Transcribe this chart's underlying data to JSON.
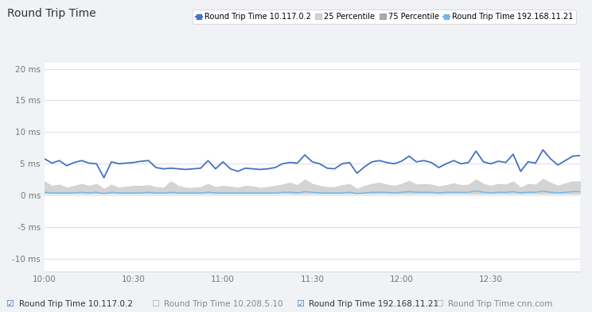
{
  "title": "Round Trip Time",
  "x_ticks": [
    "10:00",
    "10:30",
    "11:00",
    "11:30",
    "12:00",
    "12:30"
  ],
  "y_ticks": [
    -10,
    -5,
    0,
    5,
    10,
    15,
    20
  ],
  "y_labels": [
    "-10 ms",
    "-5 ms",
    "0 ms",
    "5 ms",
    "10 ms",
    "15 ms",
    "20 ms"
  ],
  "ylim": [
    -12,
    21
  ],
  "xlim": [
    0,
    72
  ],
  "bg_color": "#f0f2f5",
  "plot_bg": "#ffffff",
  "rtt_10117": [
    5.8,
    5.1,
    5.5,
    4.7,
    5.2,
    5.5,
    5.1,
    5.0,
    2.8,
    5.3,
    5.0,
    5.1,
    5.2,
    5.4,
    5.5,
    4.4,
    4.2,
    4.3,
    4.2,
    4.1,
    4.2,
    4.3,
    5.5,
    4.2,
    5.3,
    4.2,
    3.8,
    4.3,
    4.2,
    4.1,
    4.2,
    4.4,
    5.0,
    5.2,
    5.1,
    6.4,
    5.3,
    5.0,
    4.3,
    4.2,
    5.0,
    5.2,
    3.5,
    4.5,
    5.3,
    5.5,
    5.2,
    5.0,
    5.4,
    6.2,
    5.3,
    5.5,
    5.2,
    4.4,
    5.0,
    5.5,
    5.0,
    5.2,
    7.0,
    5.3,
    5.0,
    5.4,
    5.2,
    6.5,
    3.8,
    5.3,
    5.1,
    7.2,
    5.8,
    4.8,
    5.5,
    6.2,
    6.3
  ],
  "percentile_25": [
    0.3,
    0.3,
    0.3,
    0.3,
    0.3,
    0.3,
    0.3,
    0.3,
    0.3,
    0.3,
    0.3,
    0.3,
    0.3,
    0.3,
    0.3,
    0.3,
    0.3,
    0.3,
    0.3,
    0.3,
    0.3,
    0.3,
    0.3,
    0.3,
    0.3,
    0.3,
    0.3,
    0.3,
    0.3,
    0.3,
    0.3,
    0.3,
    0.3,
    0.3,
    0.3,
    0.3,
    0.3,
    0.3,
    0.3,
    0.3,
    0.3,
    0.3,
    0.3,
    0.3,
    0.3,
    0.3,
    0.3,
    0.3,
    0.3,
    0.3,
    0.3,
    0.3,
    0.3,
    0.3,
    0.3,
    0.3,
    0.3,
    0.3,
    0.3,
    0.3,
    0.3,
    0.3,
    0.3,
    0.3,
    0.3,
    0.3,
    0.3,
    0.3,
    0.3,
    0.3,
    0.3,
    0.3,
    0.3
  ],
  "percentile_75": [
    2.2,
    1.5,
    1.7,
    1.2,
    1.5,
    1.8,
    1.5,
    1.8,
    1.0,
    1.7,
    1.2,
    1.4,
    1.5,
    1.5,
    1.6,
    1.3,
    1.2,
    2.2,
    1.5,
    1.2,
    1.2,
    1.3,
    1.8,
    1.3,
    1.5,
    1.4,
    1.2,
    1.5,
    1.4,
    1.2,
    1.3,
    1.5,
    1.7,
    2.0,
    1.6,
    2.5,
    1.8,
    1.5,
    1.3,
    1.3,
    1.6,
    1.8,
    1.0,
    1.5,
    1.8,
    2.0,
    1.7,
    1.5,
    1.8,
    2.3,
    1.7,
    1.8,
    1.7,
    1.4,
    1.6,
    1.9,
    1.6,
    1.7,
    2.5,
    1.8,
    1.5,
    1.8,
    1.7,
    2.2,
    1.2,
    1.8,
    1.7,
    2.6,
    2.0,
    1.5,
    1.9,
    2.2,
    2.2
  ],
  "rtt_192168": [
    0.5,
    0.4,
    0.4,
    0.4,
    0.4,
    0.5,
    0.4,
    0.5,
    0.3,
    0.5,
    0.4,
    0.4,
    0.4,
    0.4,
    0.5,
    0.4,
    0.4,
    0.5,
    0.4,
    0.4,
    0.4,
    0.4,
    0.5,
    0.4,
    0.4,
    0.4,
    0.4,
    0.4,
    0.4,
    0.4,
    0.4,
    0.4,
    0.5,
    0.5,
    0.4,
    0.6,
    0.5,
    0.4,
    0.4,
    0.4,
    0.4,
    0.5,
    0.3,
    0.4,
    0.5,
    0.5,
    0.5,
    0.4,
    0.5,
    0.6,
    0.5,
    0.5,
    0.5,
    0.4,
    0.5,
    0.5,
    0.5,
    0.5,
    0.7,
    0.5,
    0.4,
    0.5,
    0.5,
    0.6,
    0.4,
    0.5,
    0.5,
    0.7,
    0.5,
    0.4,
    0.5,
    0.6,
    0.6
  ],
  "line_color_10117": "#4472c4",
  "line_color_192168": "#70b8e8",
  "fill_color_75": "#c8c8c8",
  "fill_color_25": "#e8e8e8",
  "grid_color": "#e0e0e0",
  "legend_items": [
    {
      "label": "Round Trip Time 10.117.0.2",
      "color": "#4472c4",
      "type": "line"
    },
    {
      "label": "25 Percentile",
      "color": "#d8d8d8",
      "type": "fill"
    },
    {
      "label": "75 Percentile",
      "color": "#aaaaaa",
      "type": "fill"
    },
    {
      "label": "Round Trip Time 192.168.11.21",
      "color": "#70b8e8",
      "type": "line"
    }
  ],
  "bottom_legend": [
    {
      "label": "Round Trip Time 10.117.0.2",
      "checked": true,
      "check_color": "#4472c4"
    },
    {
      "label": "Round Trip Time 10.208.5.10",
      "checked": false,
      "check_color": "#aaaaaa"
    },
    {
      "label": "Round Trip Time 192.168.11.21",
      "checked": true,
      "check_color": "#4472c4"
    },
    {
      "label": "Round Trip Time cnn.com",
      "checked": false,
      "check_color": "#aaaaaa"
    }
  ],
  "x_tick_positions": [
    0,
    12,
    24,
    36,
    48,
    60
  ],
  "title_fontsize": 10,
  "tick_fontsize": 7.5,
  "legend_fontsize": 7
}
